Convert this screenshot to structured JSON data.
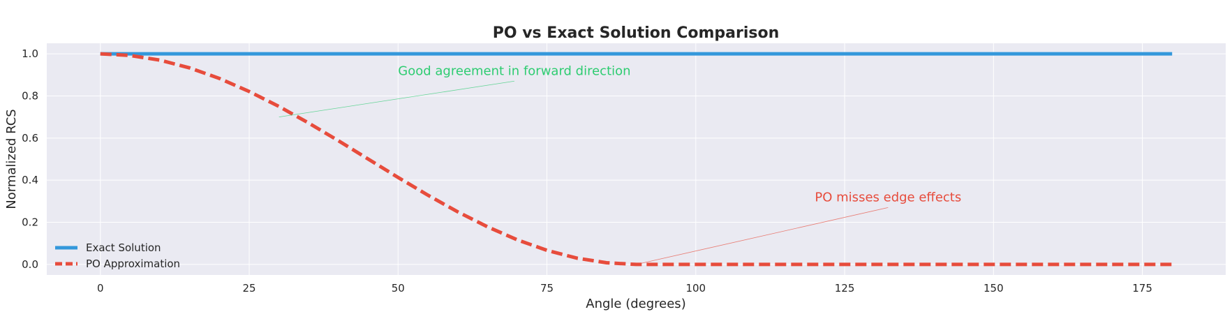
{
  "chart_data": {
    "type": "line",
    "title": "PO vs Exact Solution Comparison",
    "x_label": "Angle (degrees)",
    "y_label": "Normalized RCS",
    "x": [
      0,
      5,
      10,
      15,
      20,
      25,
      30,
      35,
      40,
      45,
      50,
      55,
      60,
      65,
      70,
      75,
      80,
      85,
      90,
      95,
      100,
      105,
      110,
      115,
      120,
      125,
      130,
      135,
      140,
      145,
      150,
      155,
      160,
      165,
      170,
      175,
      180
    ],
    "series": [
      {
        "name": "Exact Solution",
        "color": "#3498db",
        "style": "solid",
        "values": [
          1,
          1,
          1,
          1,
          1,
          1,
          1,
          1,
          1,
          1,
          1,
          1,
          1,
          1,
          1,
          1,
          1,
          1,
          1,
          1,
          1,
          1,
          1,
          1,
          1,
          1,
          1,
          1,
          1,
          1,
          1,
          1,
          1,
          1,
          1,
          1,
          1
        ]
      },
      {
        "name": "PO Approximation",
        "color": "#e74c3c",
        "style": "dashed",
        "values": [
          1,
          0.992,
          0.97,
          0.933,
          0.883,
          0.821,
          0.75,
          0.671,
          0.587,
          0.5,
          0.413,
          0.329,
          0.25,
          0.179,
          0.117,
          0.067,
          0.03,
          0.008,
          0,
          0,
          0,
          0,
          0,
          0,
          0,
          0,
          0,
          0,
          0,
          0,
          0,
          0,
          0,
          0,
          0,
          0,
          0
        ]
      }
    ],
    "xlim": [
      -9,
      189
    ],
    "ylim": [
      -0.05,
      1.05
    ],
    "xticks": [
      0,
      25,
      50,
      75,
      100,
      125,
      150,
      175
    ],
    "yticks": [
      {
        "value": 0,
        "label": "0.0"
      },
      {
        "value": 0.2,
        "label": "0.2"
      },
      {
        "value": 0.4,
        "label": "0.4"
      },
      {
        "value": 0.6,
        "label": "0.6"
      },
      {
        "value": 0.8,
        "label": "0.8"
      },
      {
        "value": 1,
        "label": "1.0"
      }
    ],
    "grid": true,
    "legend": "lower left",
    "annotations": [
      {
        "text": "Good agreement in forward direction",
        "xy": [
          30,
          0.7
        ],
        "xytext": [
          50,
          0.9
        ],
        "color": "#2ecc71"
      },
      {
        "text": "PO misses edge effects",
        "xy": [
          90,
          0
        ],
        "xytext": [
          120,
          0.3
        ],
        "color": "#e74c3c"
      }
    ]
  }
}
